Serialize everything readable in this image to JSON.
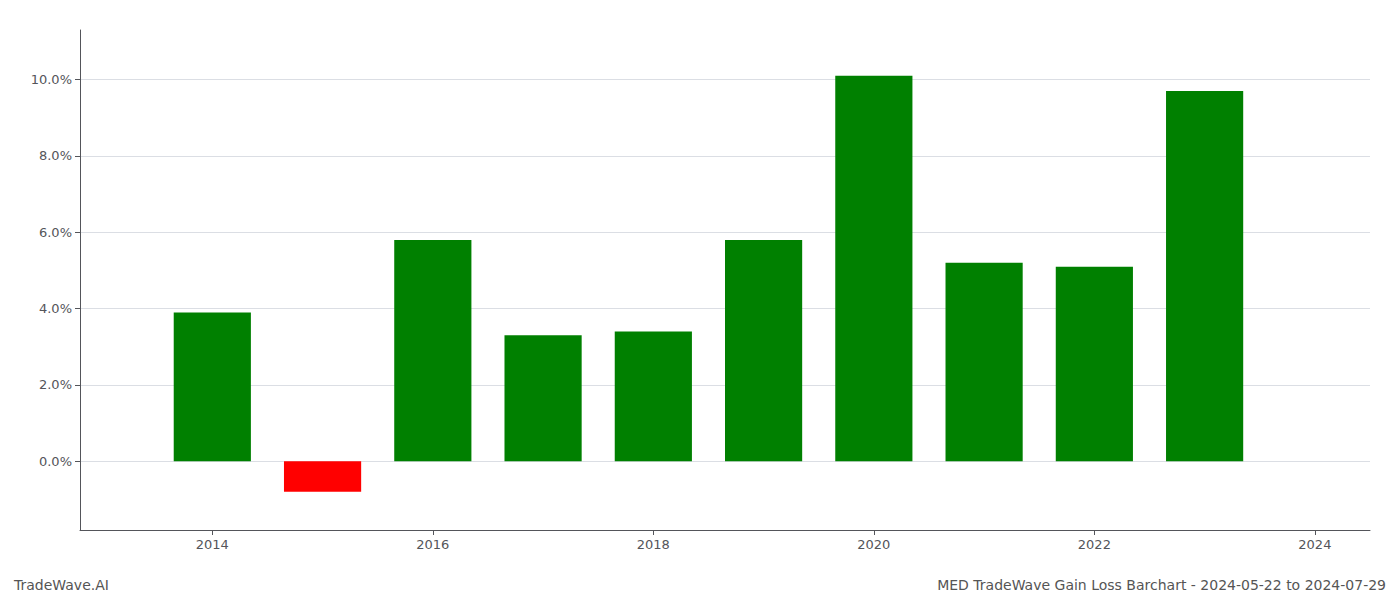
{
  "chart_data": {
    "type": "bar",
    "x": [
      2014,
      2015,
      2016,
      2017,
      2018,
      2019,
      2020,
      2021,
      2022,
      2023
    ],
    "values": [
      0.039,
      -0.008,
      0.058,
      0.033,
      0.034,
      0.058,
      0.101,
      0.052,
      0.051,
      0.097
    ],
    "colors": [
      "#008000",
      "#ff0000",
      "#008000",
      "#008000",
      "#008000",
      "#008000",
      "#008000",
      "#008000",
      "#008000",
      "#008000"
    ],
    "xlim": [
      2012.8,
      2024.5
    ],
    "xticks": [
      2014,
      2016,
      2018,
      2020,
      2022,
      2024
    ],
    "ylim": [
      -0.018,
      0.113
    ],
    "yticks": [
      {
        "value": 0.0,
        "label": "0.0%"
      },
      {
        "value": 0.02,
        "label": "2.0%"
      },
      {
        "value": 0.04,
        "label": "4.0%"
      },
      {
        "value": 0.06,
        "label": "6.0%"
      },
      {
        "value": 0.08,
        "label": "8.0%"
      },
      {
        "value": 0.1,
        "label": "10.0%"
      }
    ],
    "grid": true,
    "annotations": [
      "TradeWave.AI",
      "MED TradeWave Gain Loss Barchart - 2024-05-22 to 2024-07-29"
    ]
  }
}
